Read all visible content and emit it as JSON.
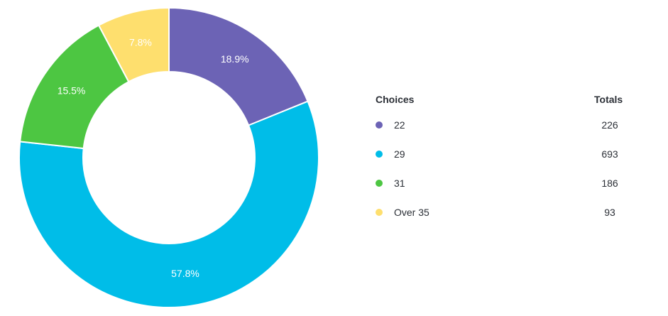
{
  "chart_data": {
    "type": "pie",
    "categories": [
      "22",
      "29",
      "31",
      "Over 35"
    ],
    "values": [
      226,
      693,
      186,
      93
    ],
    "percent_labels": [
      "18.9%",
      "57.8%",
      "15.5%",
      "7.8%"
    ],
    "colors": [
      "#6c63b5",
      "#00bde8",
      "#4dc642",
      "#fedf6e"
    ],
    "donut": true
  },
  "legend": {
    "choices_header": "Choices",
    "totals_header": "Totals",
    "rows": [
      {
        "choice": "22",
        "total": "226",
        "color": "#6c63b5"
      },
      {
        "choice": "29",
        "total": "693",
        "color": "#00bde8"
      },
      {
        "choice": "31",
        "total": "186",
        "color": "#4dc642"
      },
      {
        "choice": "Over 35",
        "total": "93",
        "color": "#fedf6e"
      }
    ]
  }
}
